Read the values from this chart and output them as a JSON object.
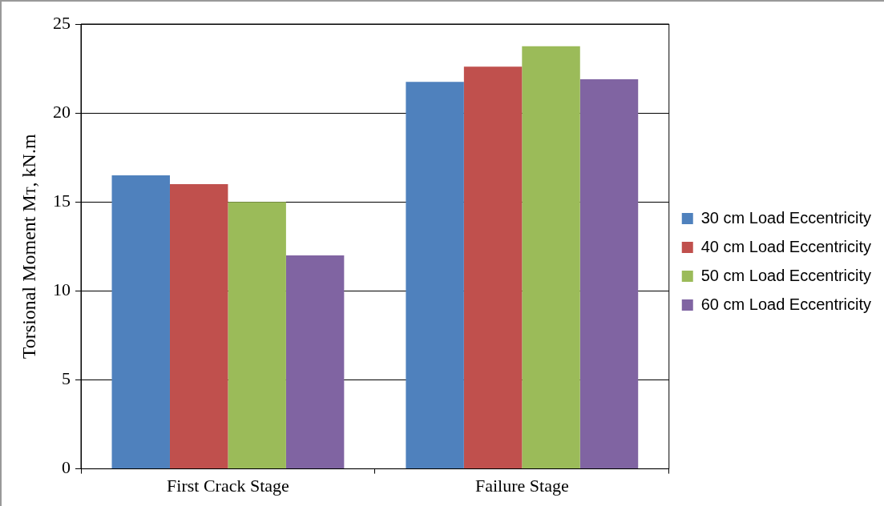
{
  "chart_data": {
    "type": "bar",
    "ylabel": "Torsional Moment M$_{T}$, kN.m",
    "categories": [
      "First Crack Stage",
      "Failure Stage"
    ],
    "series": [
      {
        "name": "30 cm Load Eccentricity",
        "color": "#4f81bd",
        "values": [
          16.5,
          21.75
        ]
      },
      {
        "name": "40 cm Load Eccentricity",
        "color": "#c0504d",
        "values": [
          16,
          22.6
        ]
      },
      {
        "name": "50 cm Load Eccentricity",
        "color": "#9bbb59",
        "values": [
          15,
          23.75
        ]
      },
      {
        "name": "60 cm Load Eccentricity",
        "color": "#8064a2",
        "values": [
          12,
          21.9
        ]
      }
    ],
    "ylim": [
      0,
      25
    ],
    "yticks": [
      0,
      5,
      10,
      15,
      20,
      25
    ],
    "grid": "y",
    "legend": "right"
  }
}
